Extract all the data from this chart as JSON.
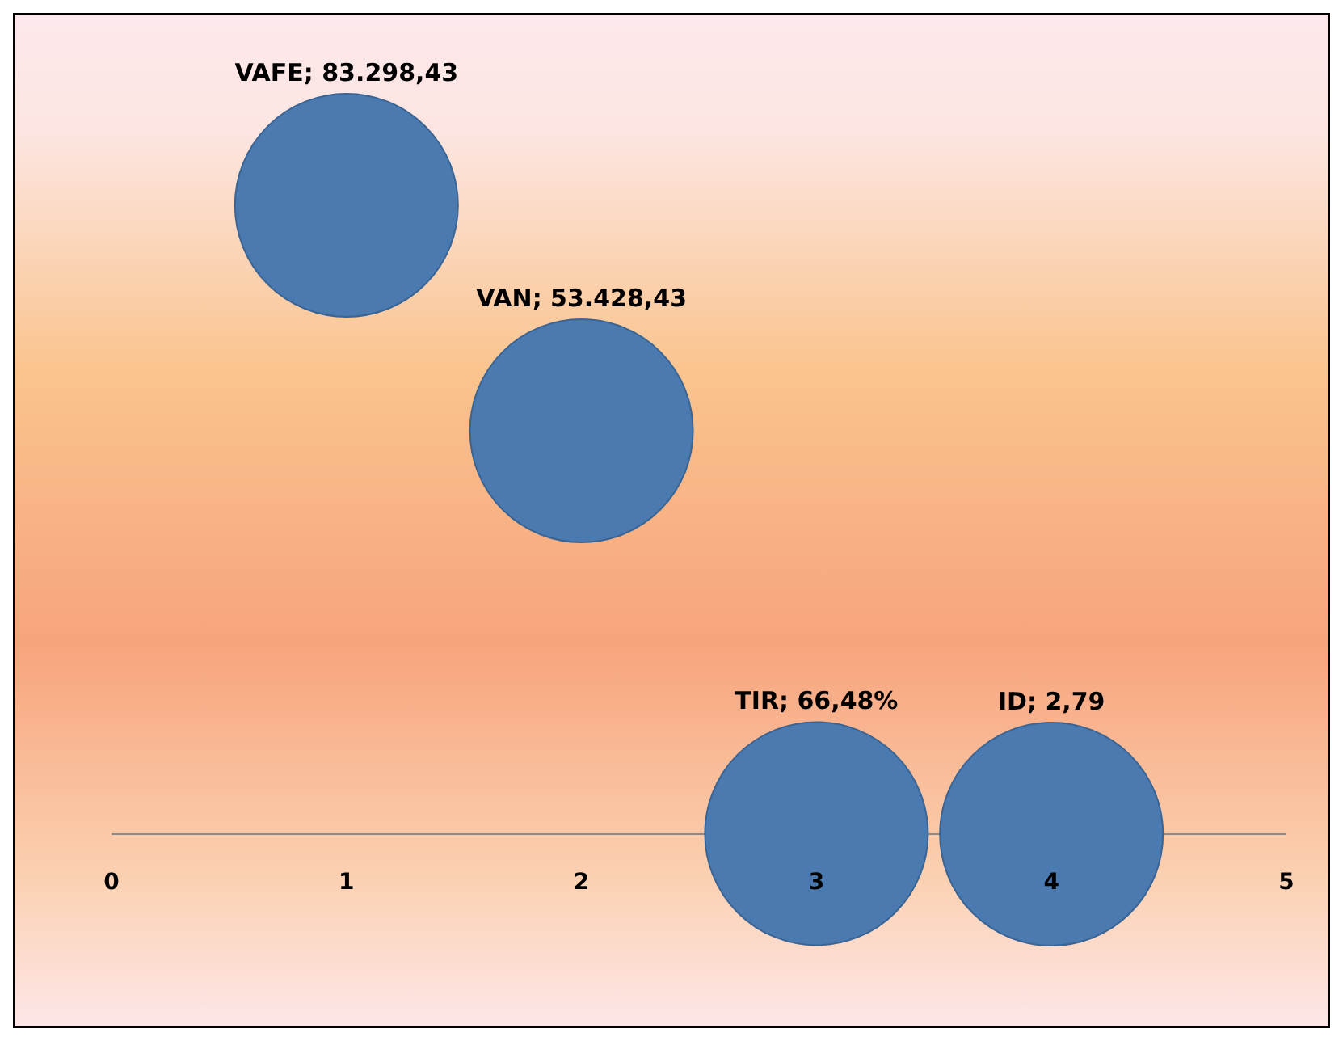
{
  "chart_data": {
    "type": "bubble",
    "x": [
      1,
      2,
      3,
      4
    ],
    "series": [
      {
        "color": "#4a7ab0",
        "values": [
          83298.43,
          53428.43,
          66.48,
          2.79
        ],
        "sizes": [
          1,
          1,
          1,
          1
        ],
        "value_labels": [
          "VAFE; 83.298,43",
          "VAN; 53.428,43",
          "TIR; 66,48%",
          "ID; 2,79"
        ]
      }
    ],
    "xlim": [
      0,
      5
    ],
    "xticks": [
      0,
      1,
      2,
      3,
      4,
      5
    ],
    "tick_labels": "x"
  }
}
